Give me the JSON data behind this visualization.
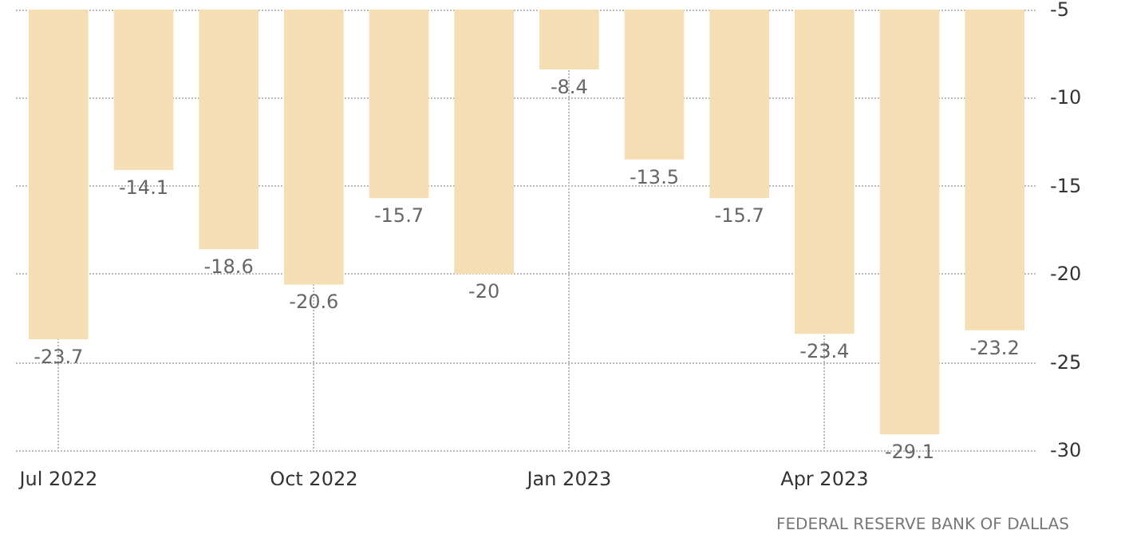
{
  "chart_data": {
    "type": "bar",
    "categories": [
      "Jul 2022",
      null,
      null,
      "Oct 2022",
      null,
      null,
      "Jan 2023",
      null,
      null,
      "Apr 2023",
      null,
      null
    ],
    "values": [
      -23.7,
      -14.1,
      -18.6,
      -20.6,
      -15.7,
      -20,
      -8.4,
      -13.5,
      -15.7,
      -23.4,
      -29.1,
      -23.2
    ],
    "color": "#f5deb3",
    "ylim": [
      -30,
      -5
    ],
    "yticks": [
      -5,
      -10,
      -15,
      -20,
      -25,
      -30
    ],
    "grid": true,
    "data_labels": true,
    "annotations": [
      "FEDERAL RESERVE BANK OF DALLAS"
    ]
  }
}
